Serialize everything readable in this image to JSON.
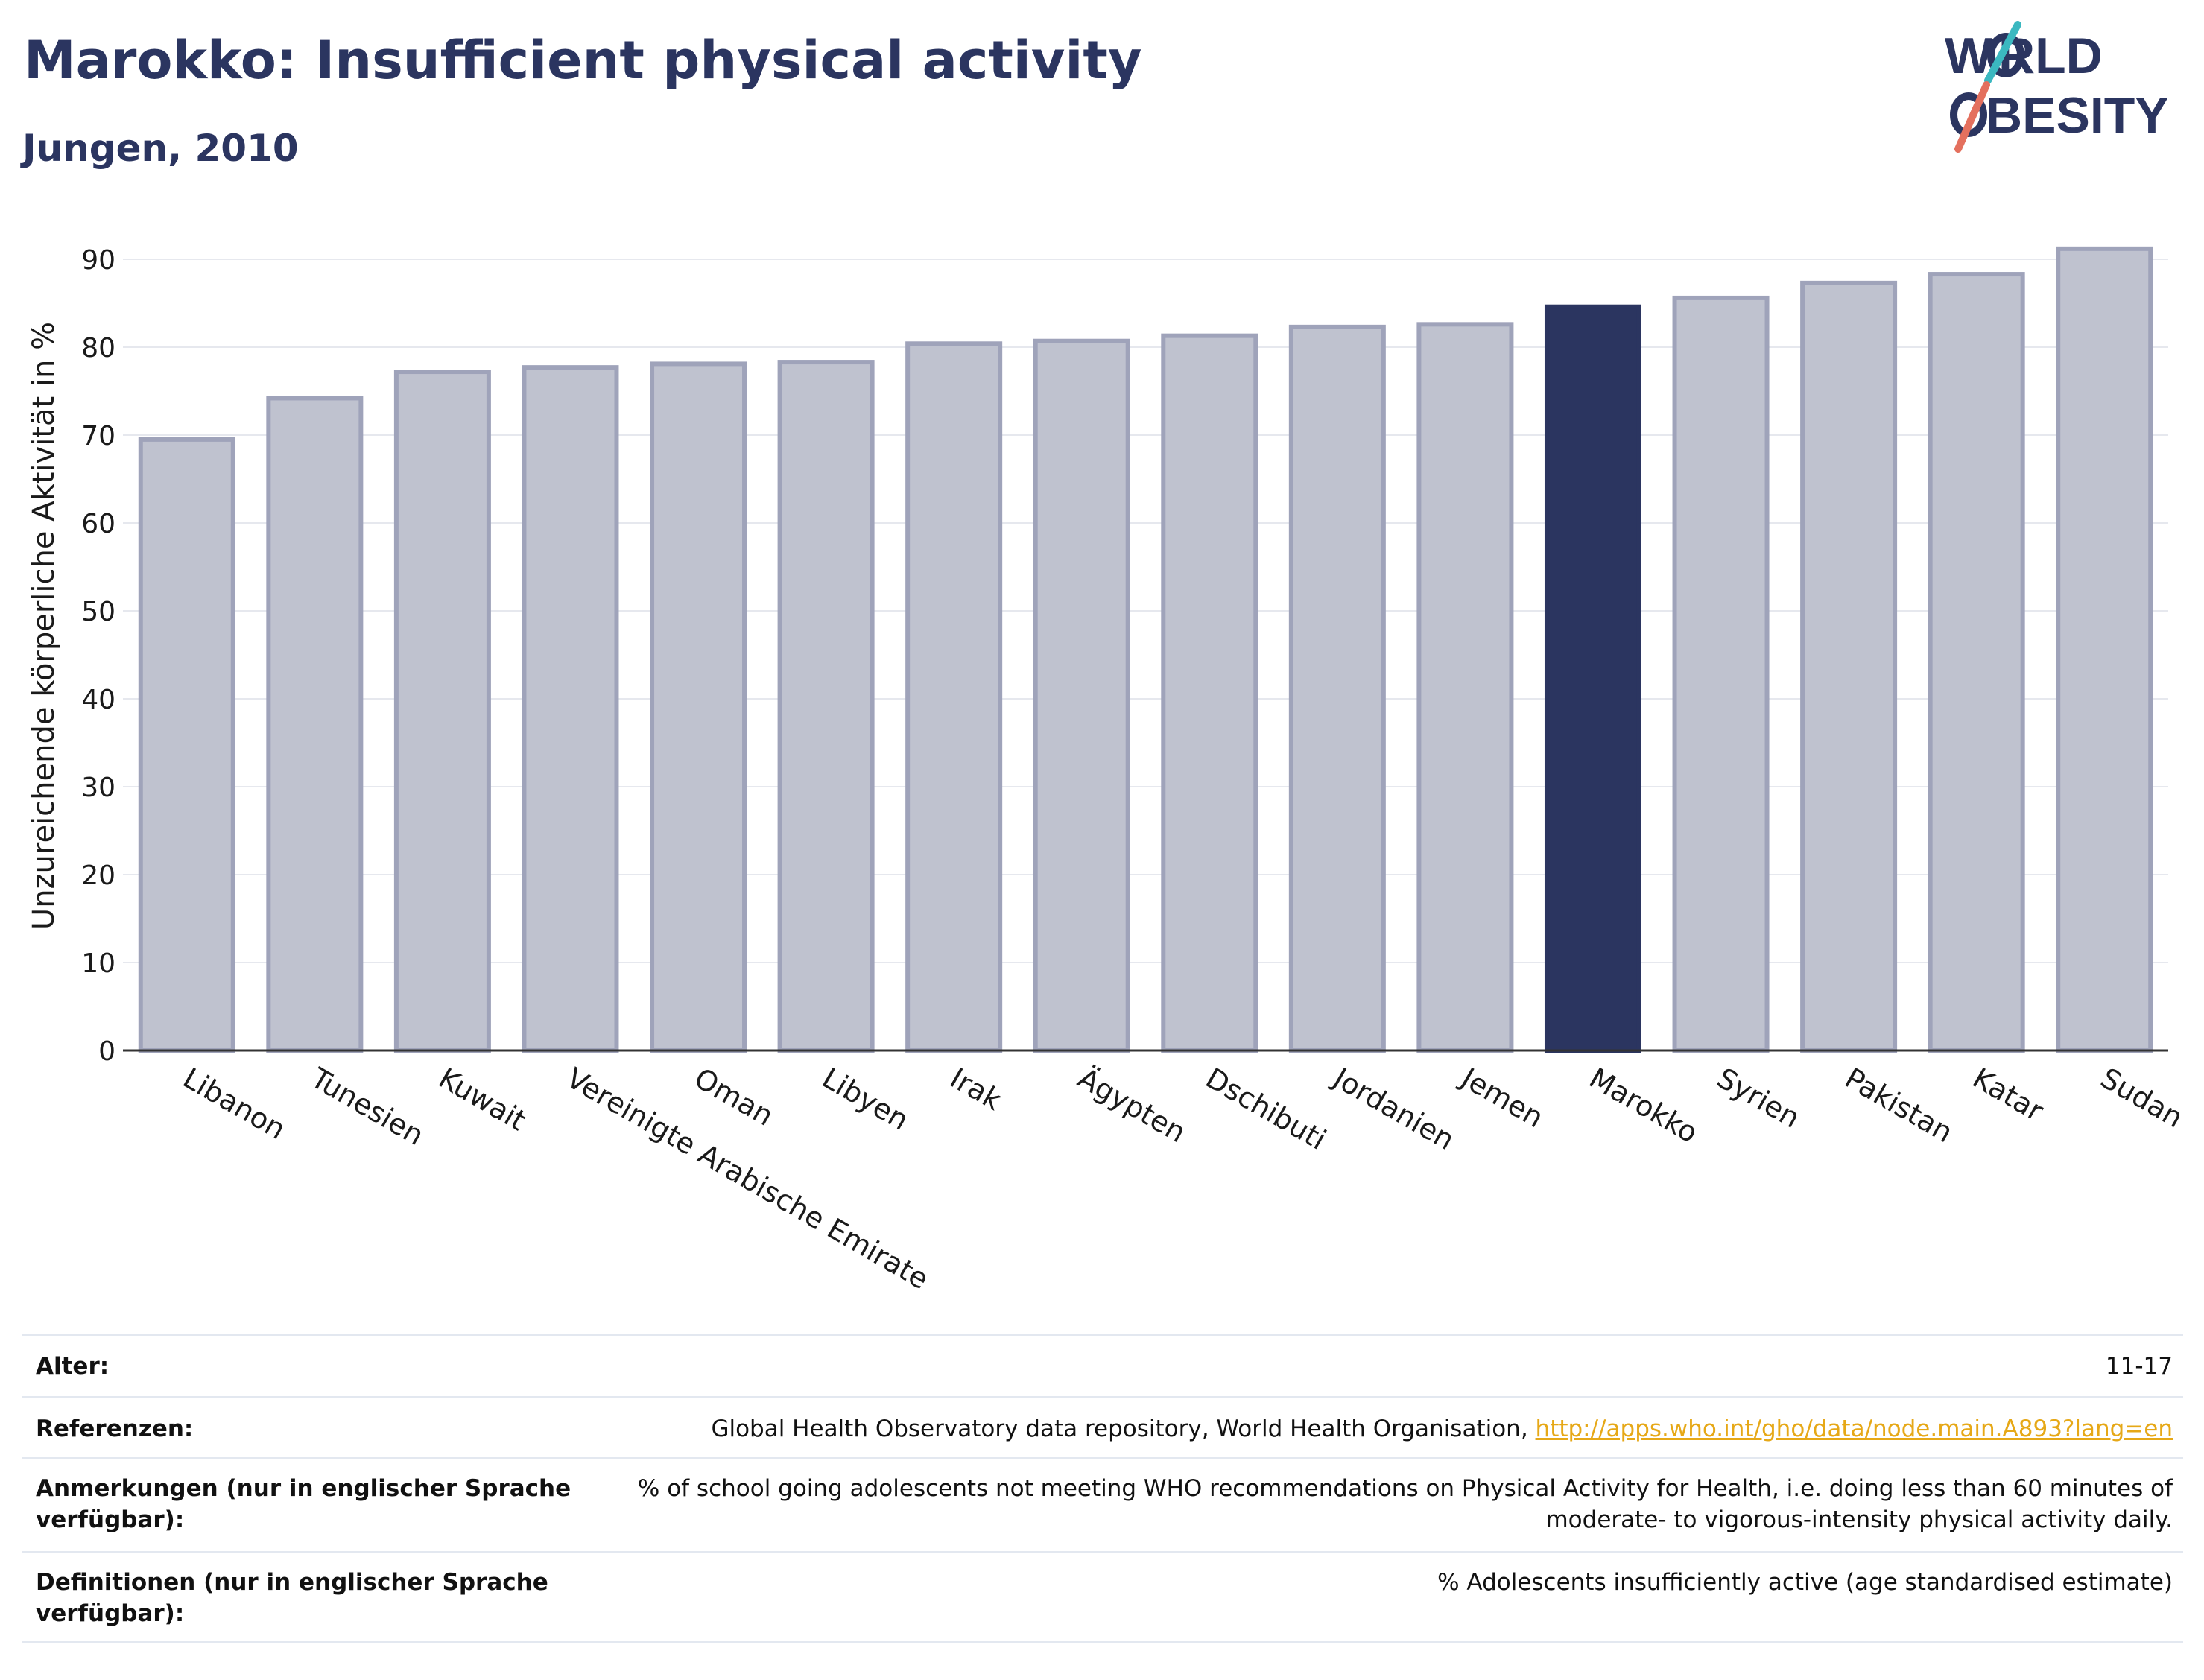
{
  "header": {
    "title": "Marokko: Insufficient physical activity",
    "subtitle": "Jungen, 2010"
  },
  "logo": {
    "line1": "WORLD",
    "line2": "OBESITY"
  },
  "colors": {
    "highlight": "#2b3560",
    "bar": "#bfc2cf",
    "bar_edge": "#9fa3ba",
    "title": "#2b3560",
    "link": "#e6a817"
  },
  "chart_data": {
    "type": "bar",
    "title": "",
    "xlabel": "",
    "ylabel": "Unzureichende körperliche Aktivität in %",
    "ylim": [
      0,
      93
    ],
    "yticks": [
      0,
      10,
      20,
      30,
      40,
      50,
      60,
      70,
      80,
      90
    ],
    "grid": true,
    "highlight": "Marokko",
    "categories": [
      "Libanon",
      "Tunesien",
      "Kuwait",
      "Vereinigte Arabische Emirate",
      "Oman",
      "Libyen",
      "Irak",
      "Ägypten",
      "Dschibuti",
      "Jordanien",
      "Jemen",
      "Marokko",
      "Syrien",
      "Pakistan",
      "Katar",
      "Sudan"
    ],
    "values": [
      69.5,
      74.2,
      77.2,
      77.7,
      78.1,
      78.3,
      80.4,
      80.7,
      81.3,
      82.3,
      82.6,
      84.6,
      85.6,
      87.3,
      88.3,
      91.2
    ]
  },
  "meta": [
    {
      "label": "Alter:",
      "value": "11-17"
    },
    {
      "label": "Referenzen:",
      "value": "Global Health Observatory data repository, World Health Organisation, ",
      "link": "http://apps.who.int/gho/data/node.main.A893?lang=en"
    },
    {
      "label": "Anmerkungen (nur in englischer Sprache verfügbar):",
      "value": "% of school going adolescents not meeting WHO recommendations on Physical Activity for Health, i.e. doing less than 60 minutes of moderate- to vigorous-intensity physical activity daily."
    },
    {
      "label": "Definitionen (nur in englischer Sprache verfügbar):",
      "value": "% Adolescents insufficiently active (age standardised estimate)"
    }
  ]
}
